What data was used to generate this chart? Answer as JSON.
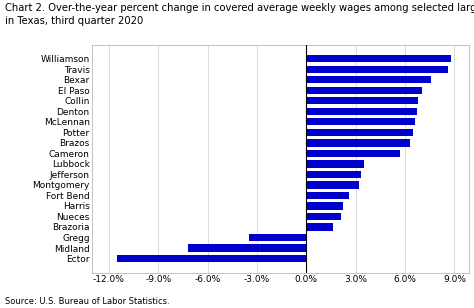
{
  "title_line1": "Chart 2. Over-the-year percent change in covered average weekly wages among selected large counties",
  "title_line2": "in Texas, third quarter 2020",
  "categories": [
    "Williamson",
    "Travis",
    "Bexar",
    "El Paso",
    "Collin",
    "Denton",
    "McLennan",
    "Potter",
    "Brazos",
    "Cameron",
    "Lubbock",
    "Jefferson",
    "Montgomery",
    "Fort Bend",
    "Harris",
    "Nueces",
    "Brazoria",
    "Gregg",
    "Midland",
    "Ector"
  ],
  "values": [
    8.8,
    8.6,
    7.6,
    7.0,
    6.8,
    6.7,
    6.6,
    6.5,
    6.3,
    5.7,
    3.5,
    3.3,
    3.2,
    2.6,
    2.2,
    2.1,
    1.6,
    -3.5,
    -7.2,
    -11.5
  ],
  "bar_color": "#0000cc",
  "xlim": [
    -13.0,
    9.9
  ],
  "xticks": [
    -12.0,
    -9.0,
    -6.0,
    -3.0,
    0.0,
    3.0,
    6.0,
    9.0
  ],
  "xticklabels": [
    "-12.0%",
    "-9.0%",
    "-6.0%",
    "-3.0%",
    "0.0%",
    "3.0%",
    "6.0%",
    "9.0%"
  ],
  "source": "Source: U.S. Bureau of Labor Statistics.",
  "title_fontsize": 7.2,
  "label_fontsize": 6.5,
  "tick_fontsize": 6.5,
  "source_fontsize": 6.0,
  "background_color": "#ffffff",
  "grid_color": "#cccccc"
}
